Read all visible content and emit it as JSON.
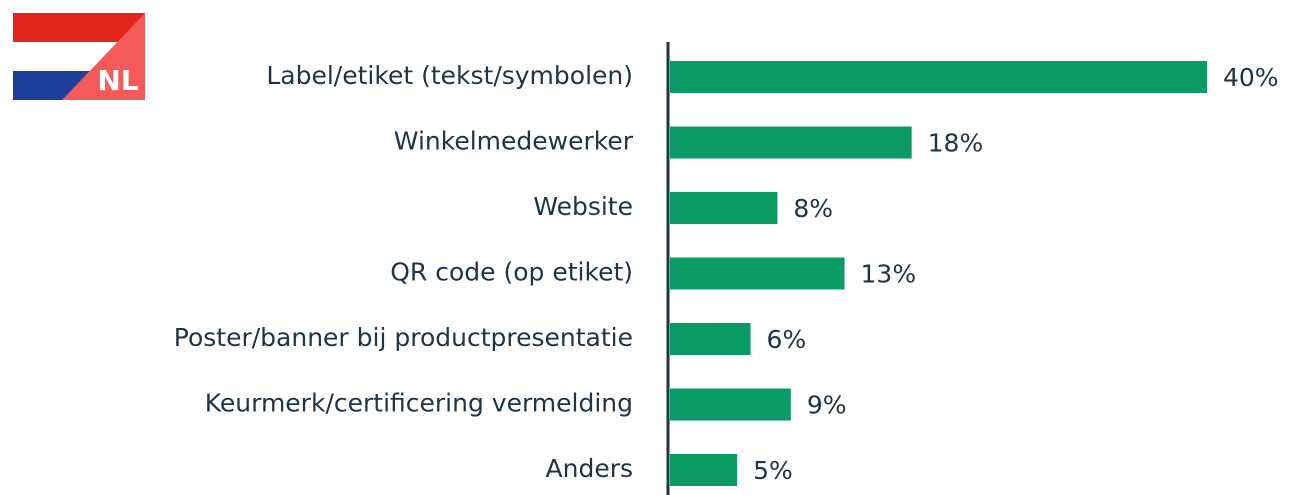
{
  "badge": "NL",
  "chart_data": {
    "type": "bar",
    "orientation": "horizontal",
    "categories": [
      "Label/etiket (tekst/symbolen)",
      "Winkelmedewerker",
      "Website",
      "QR code (op etiket)",
      "Poster/banner bij productpresentatie",
      "Keurmerk/certificering vermelding",
      "Anders"
    ],
    "values": [
      40,
      18,
      8,
      13,
      6,
      9,
      5
    ],
    "value_labels": [
      "40%",
      "18%",
      "8%",
      "13%",
      "6%",
      "9%",
      "5%"
    ],
    "color": "#0a9a64"
  }
}
